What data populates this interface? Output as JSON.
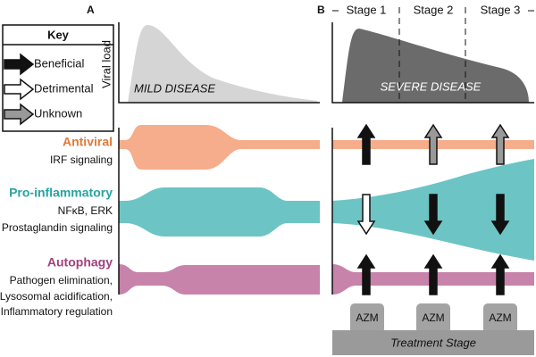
{
  "key": {
    "title": "Key",
    "items": [
      "Beneficial",
      "Detrimental",
      "Unknown"
    ]
  },
  "panels": {
    "a": {
      "label": "A",
      "y_axis": "Viral load",
      "disease": "MILD DISEASE"
    },
    "b": {
      "label": "B",
      "disease": "SEVERE DISEASE",
      "stages": [
        "Stage 1",
        "Stage 2",
        "Stage 3"
      ],
      "treatments": [
        "AZM",
        "AZM",
        "AZM"
      ],
      "treatment_stage": "Treatment Stage"
    }
  },
  "pathways": [
    {
      "name": "Antiviral",
      "details": [
        "IRF signaling"
      ]
    },
    {
      "name": "Pro-inflammatory",
      "details": [
        "NFκB, ERK",
        "Prostaglandin signaling"
      ]
    },
    {
      "name": "Autophagy",
      "details": [
        "Pathogen elimination,",
        "Lysosomal acidification,",
        "Inflammatory regulation"
      ]
    }
  ]
}
